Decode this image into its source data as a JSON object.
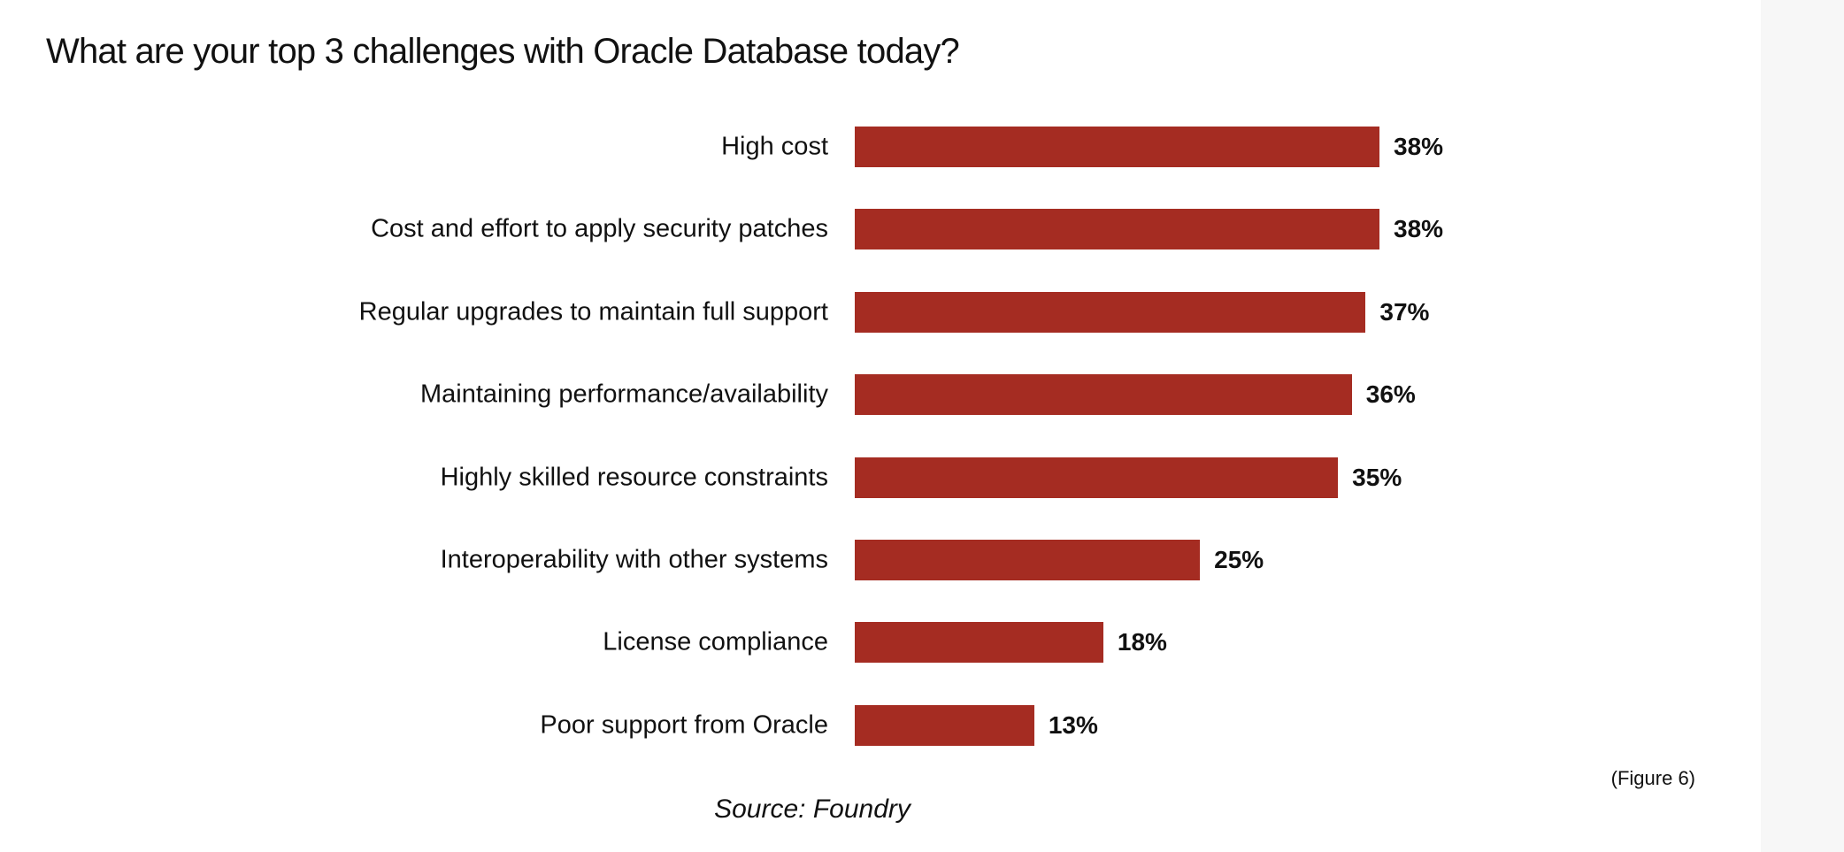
{
  "chart_data": {
    "type": "bar",
    "orientation": "horizontal",
    "title": "What are your top 3 challenges with Oracle Database today?",
    "categories": [
      "High cost",
      "Cost and effort to apply security patches",
      "Regular upgrades to maintain full support",
      "Maintaining performance/availability",
      "Highly skilled resource constraints",
      "Interoperability with other systems",
      "License compliance",
      "Poor support from Oracle"
    ],
    "values": [
      38,
      38,
      37,
      36,
      35,
      25,
      18,
      13
    ],
    "value_labels": [
      "38%",
      "38%",
      "37%",
      "36%",
      "35%",
      "25%",
      "18%",
      "13%"
    ],
    "unit": "%",
    "bar_color": "#a52c22",
    "grid": false,
    "xlabel": "",
    "ylabel": ""
  },
  "figure_label": "(Figure 6)",
  "source": "Source: Foundry"
}
